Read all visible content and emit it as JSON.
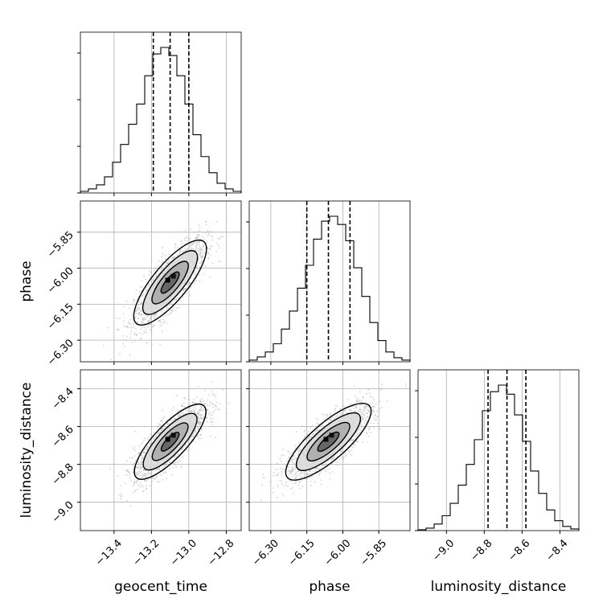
{
  "chart_data": {
    "type": "corner",
    "parameters": [
      "geocent_time",
      "phase",
      "luminosity_distance"
    ],
    "axis_labels": {
      "geocent_time": "geocent_time",
      "phase": "phase",
      "luminosity_distance": "luminosity_distance"
    },
    "ranges": {
      "geocent_time": [
        -13.58,
        -12.72
      ],
      "phase": [
        -6.39,
        -5.72
      ],
      "luminosity_distance": [
        -9.15,
        -8.3
      ]
    },
    "ticks": {
      "geocent_time": [
        {
          "value": -13.4,
          "label": "−13.4"
        },
        {
          "value": -13.2,
          "label": "−13.2"
        },
        {
          "value": -13.0,
          "label": "−13.0"
        },
        {
          "value": -12.8,
          "label": "−12.8"
        }
      ],
      "phase": [
        {
          "value": -6.3,
          "label": "−6.30"
        },
        {
          "value": -6.15,
          "label": "−6.15"
        },
        {
          "value": -6.0,
          "label": "−6.00"
        },
        {
          "value": -5.85,
          "label": "−5.85"
        }
      ],
      "luminosity_distance": [
        {
          "value": -9.0,
          "label": "−9.0"
        },
        {
          "value": -8.8,
          "label": "−8.8"
        },
        {
          "value": -8.6,
          "label": "−8.6"
        },
        {
          "value": -8.4,
          "label": "−8.4"
        }
      ]
    },
    "quantiles": {
      "geocent_time": [
        -13.19,
        -13.1,
        -13.0
      ],
      "phase": [
        -6.15,
        -6.06,
        -5.97
      ],
      "luminosity_distance": [
        -8.78,
        -8.68,
        -8.58
      ]
    },
    "histograms": {
      "geocent_time": {
        "edges": [
          -13.58,
          -13.537,
          -13.494,
          -13.451,
          -13.408,
          -13.365,
          -13.322,
          -13.279,
          -13.236,
          -13.193,
          -13.15,
          -13.107,
          -13.064,
          -13.021,
          -12.978,
          -12.935,
          -12.892,
          -12.849,
          -12.806,
          -12.763,
          -12.72
        ],
        "counts": [
          2,
          5,
          10,
          20,
          38,
          60,
          85,
          110,
          145,
          172,
          180,
          170,
          145,
          110,
          72,
          45,
          25,
          12,
          5,
          2
        ]
      },
      "phase": {
        "edges": [
          -6.39,
          -6.3565,
          -6.323,
          -6.2895,
          -6.256,
          -6.2225,
          -6.189,
          -6.1555,
          -6.122,
          -6.0885,
          -6.055,
          -6.0215,
          -5.988,
          -5.9545,
          -5.921,
          -5.8875,
          -5.854,
          -5.8205,
          -5.787,
          -5.7535,
          -5.72
        ],
        "counts": [
          2,
          6,
          12,
          22,
          40,
          62,
          90,
          118,
          150,
          172,
          178,
          168,
          148,
          115,
          80,
          48,
          26,
          12,
          5,
          2
        ]
      },
      "luminosity_distance": {
        "edges": [
          -9.15,
          -9.1075,
          -9.065,
          -9.0225,
          -8.98,
          -8.9375,
          -8.895,
          -8.8525,
          -8.81,
          -8.7675,
          -8.725,
          -8.6825,
          -8.64,
          -8.5975,
          -8.555,
          -8.5125,
          -8.47,
          -8.4275,
          -8.385,
          -8.3425,
          -8.3
        ],
        "counts": [
          1,
          3,
          8,
          18,
          33,
          55,
          80,
          110,
          145,
          168,
          176,
          165,
          140,
          108,
          72,
          45,
          25,
          12,
          5,
          2
        ]
      }
    },
    "correlation": 0.8,
    "contours_levels": [
      0.5,
      1.0,
      1.5,
      2.0
    ],
    "grid": true
  }
}
